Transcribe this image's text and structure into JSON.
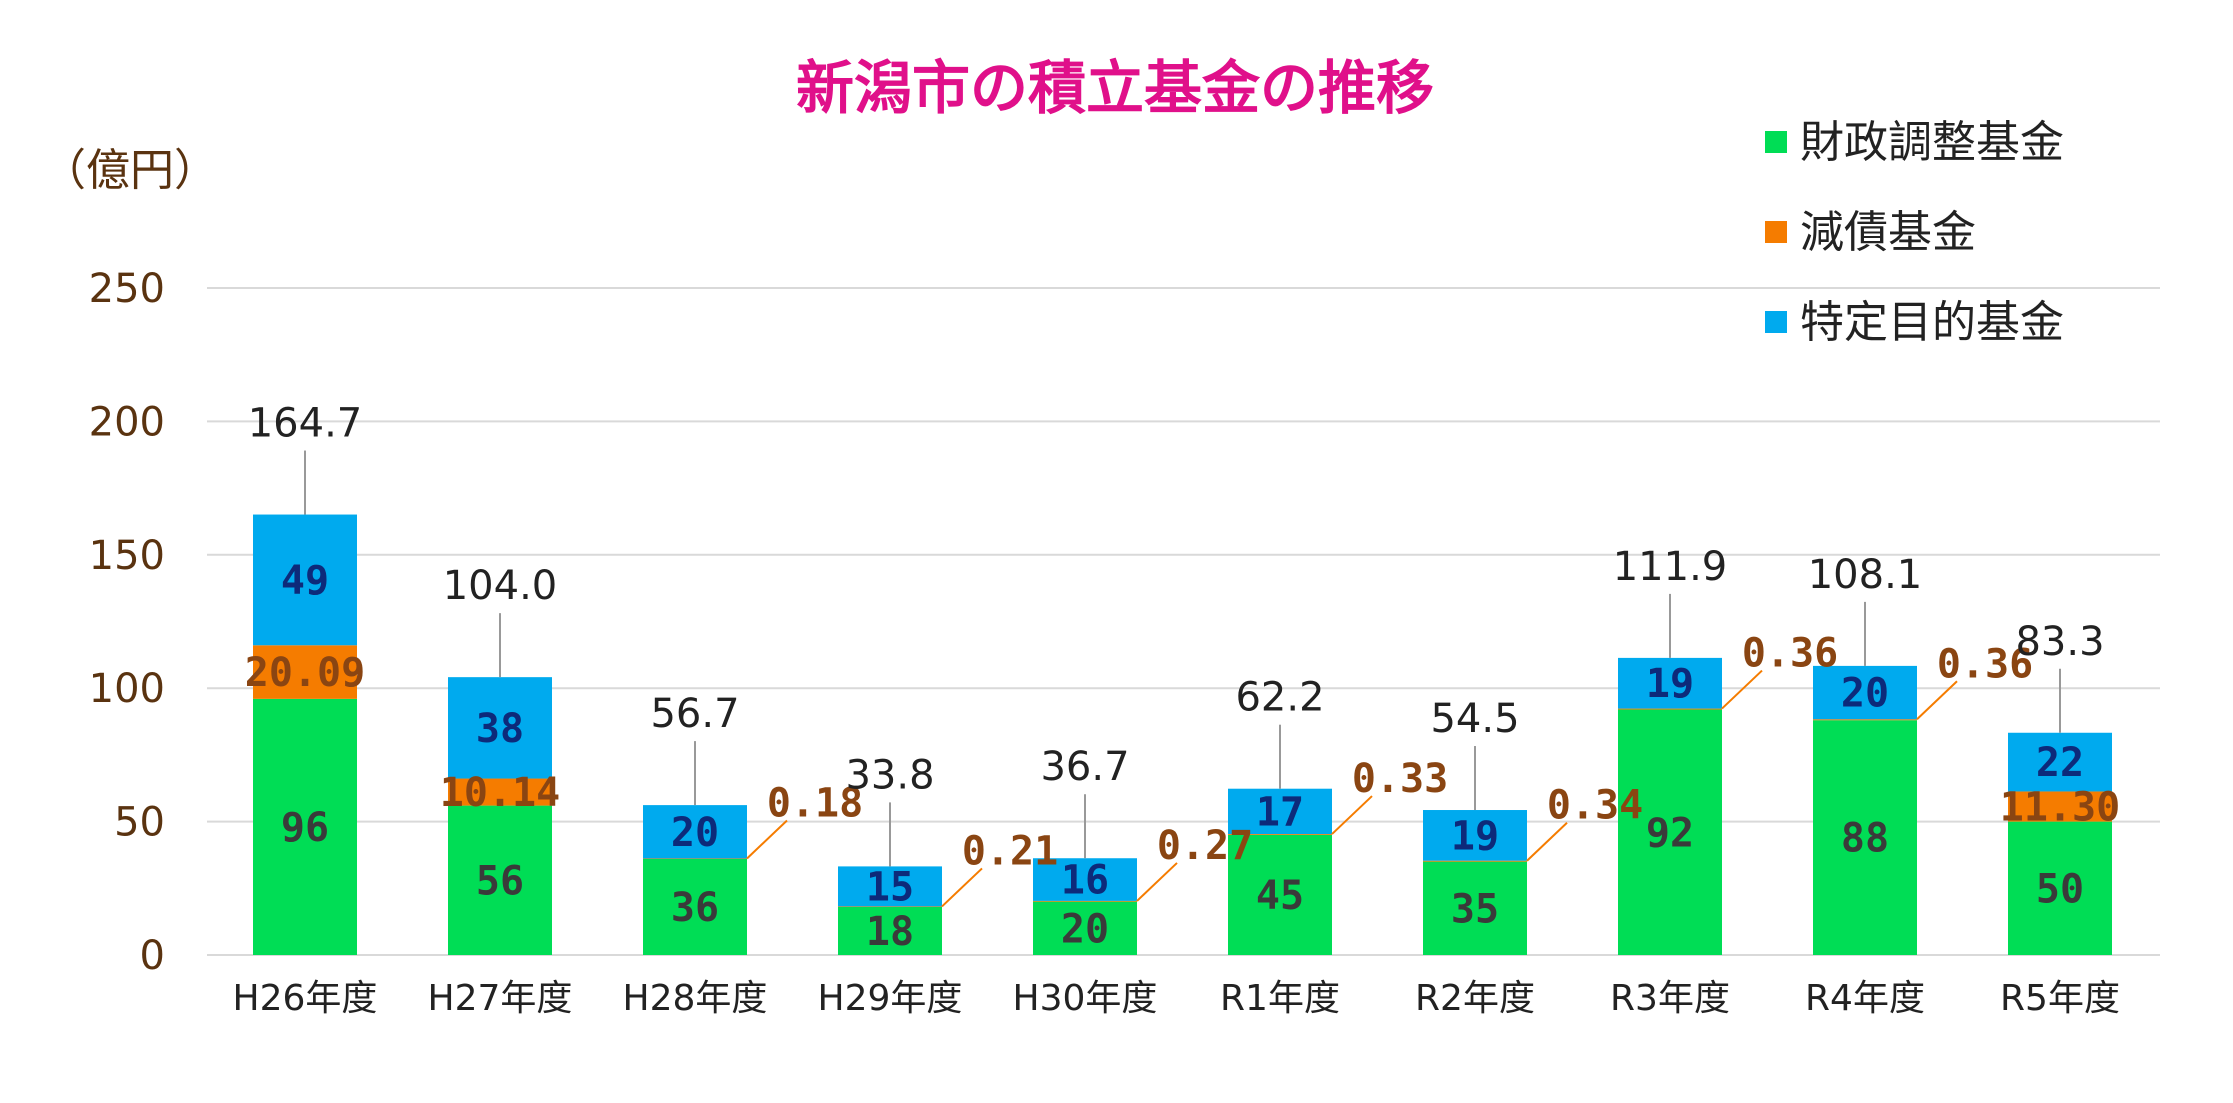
{
  "chart_data": {
    "type": "bar",
    "stacked": true,
    "title": "新潟市の積立基金の推移",
    "ylabel": "（億円）",
    "xlabel": "",
    "ylim": [
      0,
      250
    ],
    "yticks": [
      "0",
      "50",
      "100",
      "150",
      "200",
      "250"
    ],
    "grid": true,
    "legend_position": "top-right",
    "categories": [
      "H26年度",
      "H27年度",
      "H28年度",
      "H29年度",
      "H30年度",
      "R1年度",
      "R2年度",
      "R3年度",
      "R4年度",
      "R5年度"
    ],
    "series": [
      {
        "name": "財政調整基金",
        "color": "#00dd55",
        "label_color": "#3a3a3a",
        "values": [
          96,
          56,
          36,
          18,
          20,
          45,
          35,
          92,
          88,
          50
        ],
        "labels": [
          "96",
          "56",
          "36",
          "18",
          "20",
          "45",
          "35",
          "92",
          "88",
          "50"
        ]
      },
      {
        "name": "減債基金",
        "color": "#f57c00",
        "label_color": "#8a4512",
        "values": [
          20.09,
          10.14,
          0.18,
          0.21,
          0.27,
          0.33,
          0.34,
          0.36,
          0.36,
          11.3
        ],
        "labels": [
          "20.09",
          "10.14",
          "0.18",
          "0.21",
          "0.27",
          "0.33",
          "0.34",
          "0.36",
          "0.36",
          "11.30"
        ]
      },
      {
        "name": "特定目的基金",
        "color": "#00aaee",
        "label_color": "#0d2a7a",
        "values": [
          49,
          38,
          20,
          15,
          16,
          17,
          19,
          19,
          20,
          22
        ],
        "labels": [
          "49",
          "38",
          "20",
          "15",
          "16",
          "17",
          "19",
          "19",
          "20",
          "22"
        ]
      }
    ],
    "totals": [
      "164.7",
      "104.0",
      "56.7",
      "33.8",
      "36.7",
      "62.2",
      "54.5",
      "111.9",
      "108.1",
      "83.3"
    ],
    "title_color": "#e0108a",
    "axis_text_color": "#5a3310",
    "gridline_color": "#d9d9d9"
  }
}
